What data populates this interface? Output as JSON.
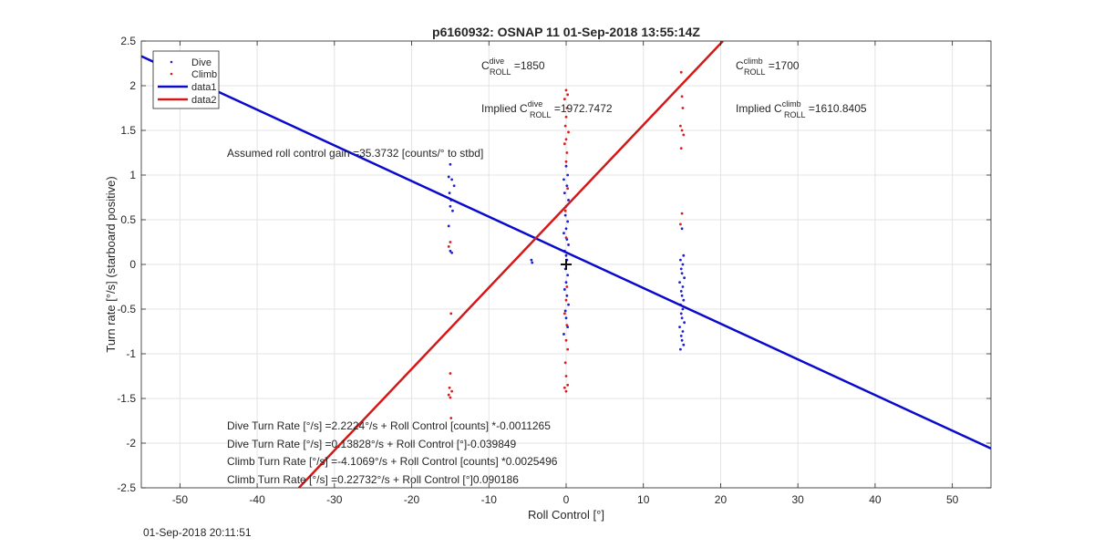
{
  "chart_data": {
    "type": "scatter",
    "title": "p6160932: OSNAP 11 01-Sep-2018 13:55:14Z",
    "xlabel": "Roll Control [°]",
    "ylabel": "Turn rate [°/s] (starboard positive)",
    "xlim": [
      -55,
      55
    ],
    "ylim": [
      -2.5,
      2.5
    ],
    "xticks": [
      -50,
      -40,
      -30,
      -20,
      -10,
      0,
      10,
      20,
      30,
      40,
      50
    ],
    "yticks": [
      -2.5,
      -2,
      -1.5,
      -1,
      -0.5,
      0,
      0.5,
      1,
      1.5,
      2,
      2.5
    ],
    "grid": true,
    "legend_position": "top-left",
    "legend": [
      "Dive",
      "Climb",
      "data1",
      "data2"
    ],
    "colors": {
      "dive": "#1f1fcc",
      "climb": "#d91c1c",
      "line1": "#0a0acc",
      "line2": "#d41818",
      "text": "#262626"
    },
    "series": [
      {
        "name": "Dive",
        "marker": "point",
        "points": [
          [
            -15.0,
            1.12
          ],
          [
            -15.2,
            0.98
          ],
          [
            -14.8,
            0.95
          ],
          [
            -14.5,
            0.88
          ],
          [
            -15.1,
            0.8
          ],
          [
            -14.9,
            0.72
          ],
          [
            -15.0,
            0.65
          ],
          [
            -14.7,
            0.6
          ],
          [
            -15.2,
            0.43
          ],
          [
            -15.0,
            0.15
          ],
          [
            -14.8,
            0.13
          ],
          [
            -4.5,
            0.05
          ],
          [
            -4.4,
            0.02
          ],
          [
            0.0,
            1.1
          ],
          [
            0.2,
            1.0
          ],
          [
            -0.3,
            0.95
          ],
          [
            0.1,
            0.88
          ],
          [
            -0.2,
            0.8
          ],
          [
            0.3,
            0.72
          ],
          [
            0.0,
            0.65
          ],
          [
            -0.1,
            0.55
          ],
          [
            0.2,
            0.48
          ],
          [
            0.0,
            0.4
          ],
          [
            -0.3,
            0.35
          ],
          [
            0.1,
            0.28
          ],
          [
            0.3,
            0.22
          ],
          [
            -0.2,
            0.15
          ],
          [
            0.0,
            0.1
          ],
          [
            0.1,
            0.05
          ],
          [
            -0.1,
            -0.05
          ],
          [
            0.2,
            -0.12
          ],
          [
            0.0,
            -0.2
          ],
          [
            -0.2,
            -0.28
          ],
          [
            0.1,
            -0.35
          ],
          [
            0.3,
            -0.45
          ],
          [
            -0.1,
            -0.52
          ],
          [
            0.0,
            -0.6
          ],
          [
            0.2,
            -0.7
          ],
          [
            -0.3,
            -0.78
          ],
          [
            15.0,
            0.4
          ],
          [
            15.2,
            0.1
          ],
          [
            14.8,
            0.05
          ],
          [
            15.1,
            0.0
          ],
          [
            14.9,
            -0.05
          ],
          [
            15.0,
            -0.1
          ],
          [
            15.3,
            -0.15
          ],
          [
            14.7,
            -0.2
          ],
          [
            15.1,
            -0.25
          ],
          [
            14.9,
            -0.3
          ],
          [
            15.0,
            -0.35
          ],
          [
            15.2,
            -0.4
          ],
          [
            14.8,
            -0.45
          ],
          [
            15.1,
            -0.5
          ],
          [
            14.9,
            -0.55
          ],
          [
            15.0,
            -0.6
          ],
          [
            15.3,
            -0.65
          ],
          [
            14.7,
            -0.7
          ],
          [
            15.1,
            -0.75
          ],
          [
            14.9,
            -0.8
          ],
          [
            15.0,
            -0.85
          ],
          [
            15.2,
            -0.9
          ],
          [
            14.8,
            -0.95
          ]
        ]
      },
      {
        "name": "Climb",
        "marker": "point",
        "points": [
          [
            -15.0,
            0.25
          ],
          [
            -15.2,
            0.2
          ],
          [
            -14.9,
            -0.55
          ],
          [
            -15.0,
            -1.22
          ],
          [
            -15.1,
            -1.38
          ],
          [
            -14.8,
            -1.42
          ],
          [
            -15.2,
            -1.46
          ],
          [
            -15.0,
            -1.49
          ],
          [
            -14.9,
            -1.72
          ],
          [
            0.0,
            1.95
          ],
          [
            0.2,
            1.9
          ],
          [
            -0.2,
            1.85
          ],
          [
            0.1,
            1.75
          ],
          [
            0.0,
            1.65
          ],
          [
            -0.1,
            1.55
          ],
          [
            0.3,
            1.48
          ],
          [
            0.0,
            1.4
          ],
          [
            -0.2,
            1.35
          ],
          [
            0.1,
            1.25
          ],
          [
            0.0,
            1.15
          ],
          [
            0.2,
            0.85
          ],
          [
            -0.1,
            0.6
          ],
          [
            0.0,
            0.3
          ],
          [
            0.1,
            -0.25
          ],
          [
            0.0,
            -0.4
          ],
          [
            -0.2,
            -0.55
          ],
          [
            0.1,
            -0.68
          ],
          [
            0.0,
            -0.85
          ],
          [
            0.2,
            -0.95
          ],
          [
            -0.1,
            -1.1
          ],
          [
            0.0,
            -1.25
          ],
          [
            0.2,
            -1.35
          ],
          [
            -0.2,
            -1.38
          ],
          [
            0.0,
            -1.42
          ],
          [
            14.9,
            2.15
          ],
          [
            15.0,
            1.88
          ],
          [
            15.1,
            1.75
          ],
          [
            14.8,
            1.55
          ],
          [
            15.0,
            1.5
          ],
          [
            15.2,
            1.45
          ],
          [
            14.9,
            1.3
          ],
          [
            15.0,
            0.57
          ],
          [
            14.8,
            0.45
          ]
        ]
      },
      {
        "name": "data1",
        "type": "line",
        "x": [
          -55,
          55
        ],
        "y": [
          2.33,
          -2.06
        ]
      },
      {
        "name": "data2",
        "type": "line",
        "x": [
          -34.6,
          20.3
        ],
        "y": [
          -2.5,
          2.5
        ]
      }
    ],
    "center_marker": [
      0,
      0
    ]
  },
  "annotations": {
    "c_dive_main": "C",
    "c_dive_sup": "dive",
    "c_dive_sub": "ROLL",
    "c_dive_value": " =1850",
    "c_climb_main": "C",
    "c_climb_sup": "climb",
    "c_climb_sub": "ROLL",
    "c_climb_value": " =1700",
    "implied_dive_prefix": "Implied C",
    "implied_dive_sup": "dive",
    "implied_dive_sub": "ROLL",
    "implied_dive_value": " =1972.7472",
    "implied_climb_prefix": "Implied C",
    "implied_climb_sup": "climb",
    "implied_climb_sub": "ROLL",
    "implied_climb_value": " =1610.8405",
    "gain": "Assumed roll control gain =35.3732 [counts/° to stbd]",
    "eq1": "Dive Turn Rate [°/s] =2.2224°/s + Roll Control [counts] *-0.0011265",
    "eq2": "Dive Turn Rate [°/s] =0.13828°/s + Roll Control [°]-0.039849",
    "eq3": "Climb Turn Rate [°/s] =-4.1069°/s + Roll Control [counts] *0.0025496",
    "eq4": "Climb Turn Rate [°/s] =0.22732°/s + Roll Control [°]0.090186"
  },
  "footer": {
    "timestamp": "01-Sep-2018 20:11:51"
  }
}
